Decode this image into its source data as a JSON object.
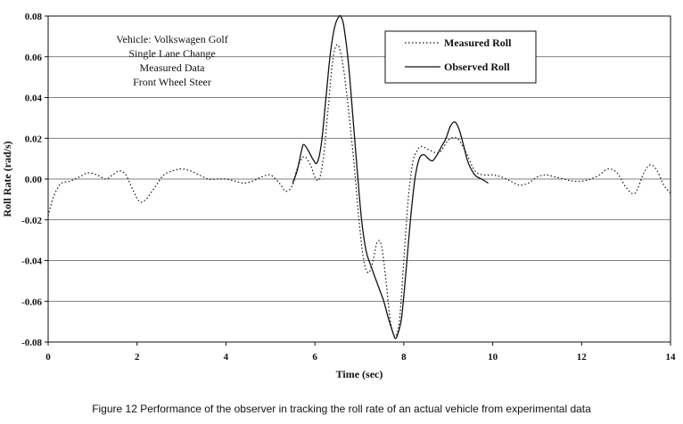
{
  "chart_data": {
    "type": "line",
    "xlabel": "Time (sec)",
    "ylabel": "Roll Rate (rad/s)",
    "xlim": [
      0,
      14
    ],
    "ylim": [
      -0.08,
      0.08
    ],
    "x_ticks": [
      0,
      2,
      4,
      6,
      8,
      10,
      12,
      14
    ],
    "y_ticks": [
      0.08,
      0.06,
      0.04,
      0.02,
      0.0,
      -0.02,
      -0.04,
      -0.06,
      -0.08
    ],
    "x_tick_labels": [
      "0",
      "2",
      "4",
      "6",
      "8",
      "10",
      "12",
      "14"
    ],
    "y_tick_labels": [
      "0.08",
      "0.06",
      "0.04",
      "0.02",
      "0.00",
      "-0.02",
      "-0.04",
      "-0.06",
      "-0.08"
    ],
    "grid": "horizontal",
    "legend_position": "top-right",
    "annotation_lines": [
      "Vehicle: Volkswagen Golf",
      "Single Lane Change",
      "Measured Data",
      "Front Wheel Steer"
    ],
    "series": [
      {
        "name": "Measured Roll",
        "style": "dotted",
        "x": [
          0,
          0.1,
          0.2,
          0.3,
          0.5,
          0.7,
          0.9,
          1.1,
          1.3,
          1.45,
          1.6,
          1.75,
          1.9,
          2.05,
          2.2,
          2.4,
          2.6,
          2.8,
          3.0,
          3.2,
          3.4,
          3.6,
          3.8,
          4.0,
          4.2,
          4.4,
          4.6,
          4.8,
          5.0,
          5.2,
          5.35,
          5.5,
          5.6,
          5.75,
          5.9,
          6.0,
          6.1,
          6.2,
          6.3,
          6.4,
          6.5,
          6.6,
          6.7,
          6.8,
          6.9,
          7.0,
          7.1,
          7.2,
          7.3,
          7.4,
          7.5,
          7.6,
          7.7,
          7.8,
          7.9,
          8.0,
          8.1,
          8.2,
          8.3,
          8.4,
          8.6,
          8.8,
          9.0,
          9.2,
          9.4,
          9.6,
          9.8,
          10.0,
          10.2,
          10.4,
          10.6,
          10.8,
          11.0,
          11.2,
          11.4,
          11.6,
          11.8,
          12.0,
          12.2,
          12.4,
          12.6,
          12.8,
          13.0,
          13.2,
          13.4,
          13.55,
          13.7,
          13.85,
          14.0
        ],
        "y": [
          -0.018,
          -0.01,
          -0.005,
          -0.002,
          -0.001,
          0.001,
          0.003,
          0.002,
          0.0,
          0.002,
          0.004,
          0.002,
          -0.005,
          -0.011,
          -0.01,
          -0.004,
          0.002,
          0.004,
          0.005,
          0.004,
          0.002,
          0.0,
          0.0,
          0.0,
          -0.001,
          -0.002,
          -0.001,
          0.001,
          0.002,
          -0.002,
          -0.006,
          -0.003,
          0.005,
          0.011,
          0.007,
          0.001,
          0.0,
          0.012,
          0.035,
          0.058,
          0.066,
          0.06,
          0.045,
          0.025,
          0.003,
          -0.022,
          -0.04,
          -0.046,
          -0.041,
          -0.031,
          -0.033,
          -0.05,
          -0.07,
          -0.077,
          -0.07,
          -0.04,
          -0.01,
          0.008,
          0.014,
          0.016,
          0.014,
          0.013,
          0.019,
          0.02,
          0.013,
          0.004,
          0.002,
          0.002,
          0.001,
          -0.001,
          -0.003,
          -0.002,
          0.001,
          0.002,
          0.001,
          0.0,
          -0.001,
          -0.001,
          0.0,
          0.002,
          0.005,
          0.003,
          -0.004,
          -0.007,
          0.003,
          0.007,
          0.004,
          -0.003,
          -0.007
        ]
      },
      {
        "name": "Observed Roll",
        "style": "solid",
        "x": [
          5.5,
          5.6,
          5.7,
          5.75,
          5.85,
          5.95,
          6.05,
          6.15,
          6.25,
          6.35,
          6.45,
          6.55,
          6.6,
          6.65,
          6.75,
          6.85,
          6.95,
          7.05,
          7.15,
          7.25,
          7.35,
          7.45,
          7.55,
          7.65,
          7.75,
          7.8,
          7.85,
          7.95,
          8.05,
          8.15,
          8.25,
          8.35,
          8.45,
          8.55,
          8.65,
          8.75,
          8.85,
          8.95,
          9.05,
          9.15,
          9.25,
          9.35,
          9.45,
          9.6,
          9.75,
          9.9
        ],
        "y": [
          -0.002,
          0.004,
          0.014,
          0.017,
          0.014,
          0.01,
          0.008,
          0.018,
          0.04,
          0.062,
          0.075,
          0.08,
          0.079,
          0.075,
          0.058,
          0.032,
          0.005,
          -0.02,
          -0.035,
          -0.042,
          -0.048,
          -0.054,
          -0.06,
          -0.068,
          -0.075,
          -0.078,
          -0.077,
          -0.068,
          -0.045,
          -0.02,
          0.0,
          0.01,
          0.012,
          0.01,
          0.009,
          0.012,
          0.016,
          0.02,
          0.026,
          0.028,
          0.024,
          0.016,
          0.008,
          0.002,
          0.0,
          -0.002
        ]
      }
    ]
  },
  "caption": "Figure 12  Performance of the observer in tracking the roll rate of an actual vehicle from experimental data"
}
